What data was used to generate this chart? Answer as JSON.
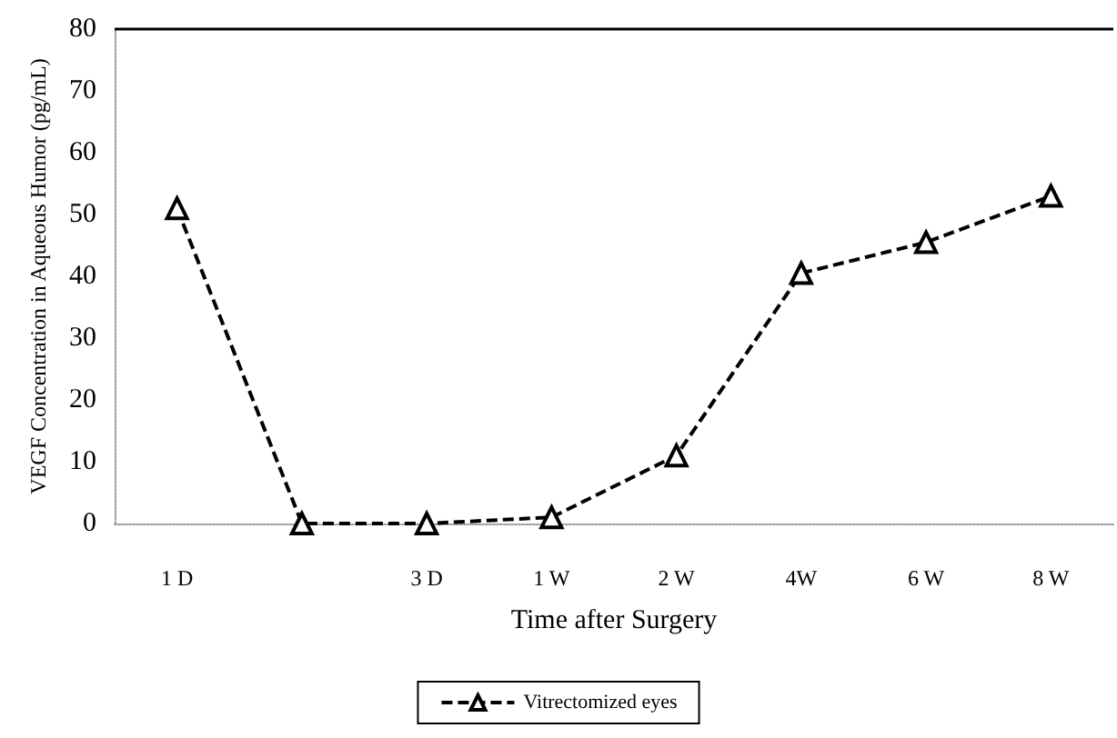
{
  "chart_data": {
    "type": "line",
    "xlabel": "Time after Surgery",
    "ylabel": "VEGF Concentration in Aqueous Humor (pg/mL)",
    "categories": [
      "1 D",
      null,
      "3 D",
      "1 W",
      "2 W",
      "4W",
      "6 W",
      "8 W"
    ],
    "series": [
      {
        "name": "Vitrectomized eyes",
        "color": "#000000",
        "values": [
          51,
          0,
          0,
          1,
          11,
          40.5,
          45.5,
          53
        ]
      }
    ],
    "ylim": [
      0,
      80
    ],
    "yticks": [
      0,
      10,
      20,
      30,
      40,
      50,
      60,
      70,
      80
    ],
    "grid": false,
    "legend": "bottom",
    "marker": "triangle",
    "line_style": "dashed"
  }
}
